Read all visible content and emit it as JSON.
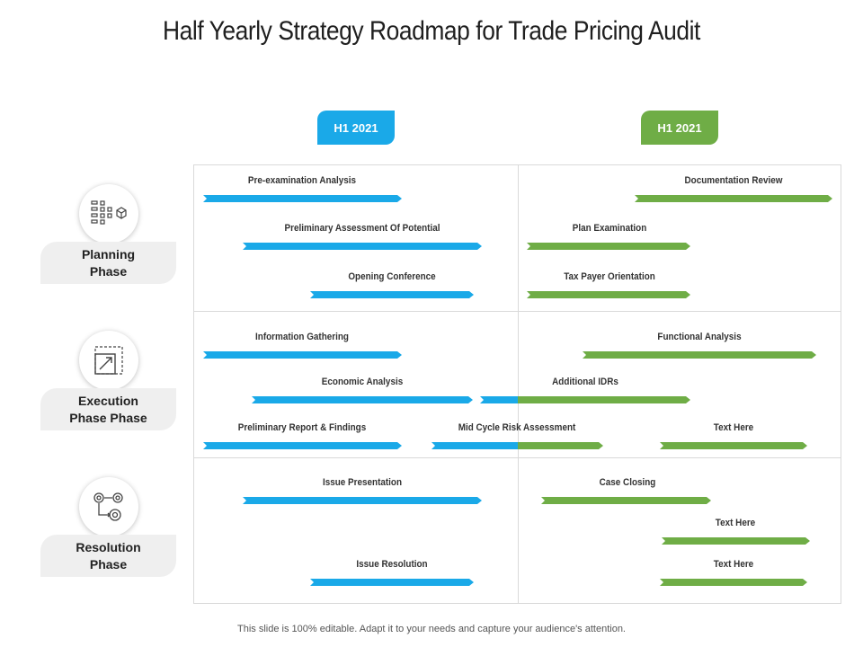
{
  "title": "Half Yearly Strategy Roadmap for Trade Pricing Audit",
  "colors": {
    "blue": "#1aa9e8",
    "green": "#6fad46",
    "grid": "#d9d9d9",
    "label_bg": "#efefef"
  },
  "tabs": [
    {
      "label": "H1 2021",
      "color": "#1aa9e8"
    },
    {
      "label": "H1 2021",
      "color": "#6fad46"
    }
  ],
  "phases": [
    {
      "line1": "Planning",
      "line2": "Phase",
      "icon": "planning-grid-icon"
    },
    {
      "line1": "Execution",
      "line2": "Phase Phase",
      "icon": "execution-resize-icon"
    },
    {
      "line1": "Resolution",
      "line2": "Phase",
      "icon": "resolution-gears-icon"
    }
  ],
  "tasks": [
    {
      "label": "Pre-examination Analysis"
    },
    {
      "label": "Preliminary Assessment  Of Potential"
    },
    {
      "label": "Opening Conference"
    },
    {
      "label": "Documentation Review"
    },
    {
      "label": "Plan Examination"
    },
    {
      "label": "Tax Payer Orientation"
    },
    {
      "label": "Information Gathering"
    },
    {
      "label": "Economic Analysis"
    },
    {
      "label": "Preliminary Report & Findings"
    },
    {
      "label": "Functional Analysis"
    },
    {
      "label": "Additional IDRs"
    },
    {
      "label": "Mid Cycle Risk Assessment"
    },
    {
      "label": "Text Here"
    },
    {
      "label": "Issue Presentation"
    },
    {
      "label": "Issue Resolution"
    },
    {
      "label": "Case Closing"
    },
    {
      "label": "Text Here"
    },
    {
      "label": "Text Here"
    }
  ],
  "footer": "This slide is 100% editable. Adapt it to your needs and capture your audience's attention."
}
